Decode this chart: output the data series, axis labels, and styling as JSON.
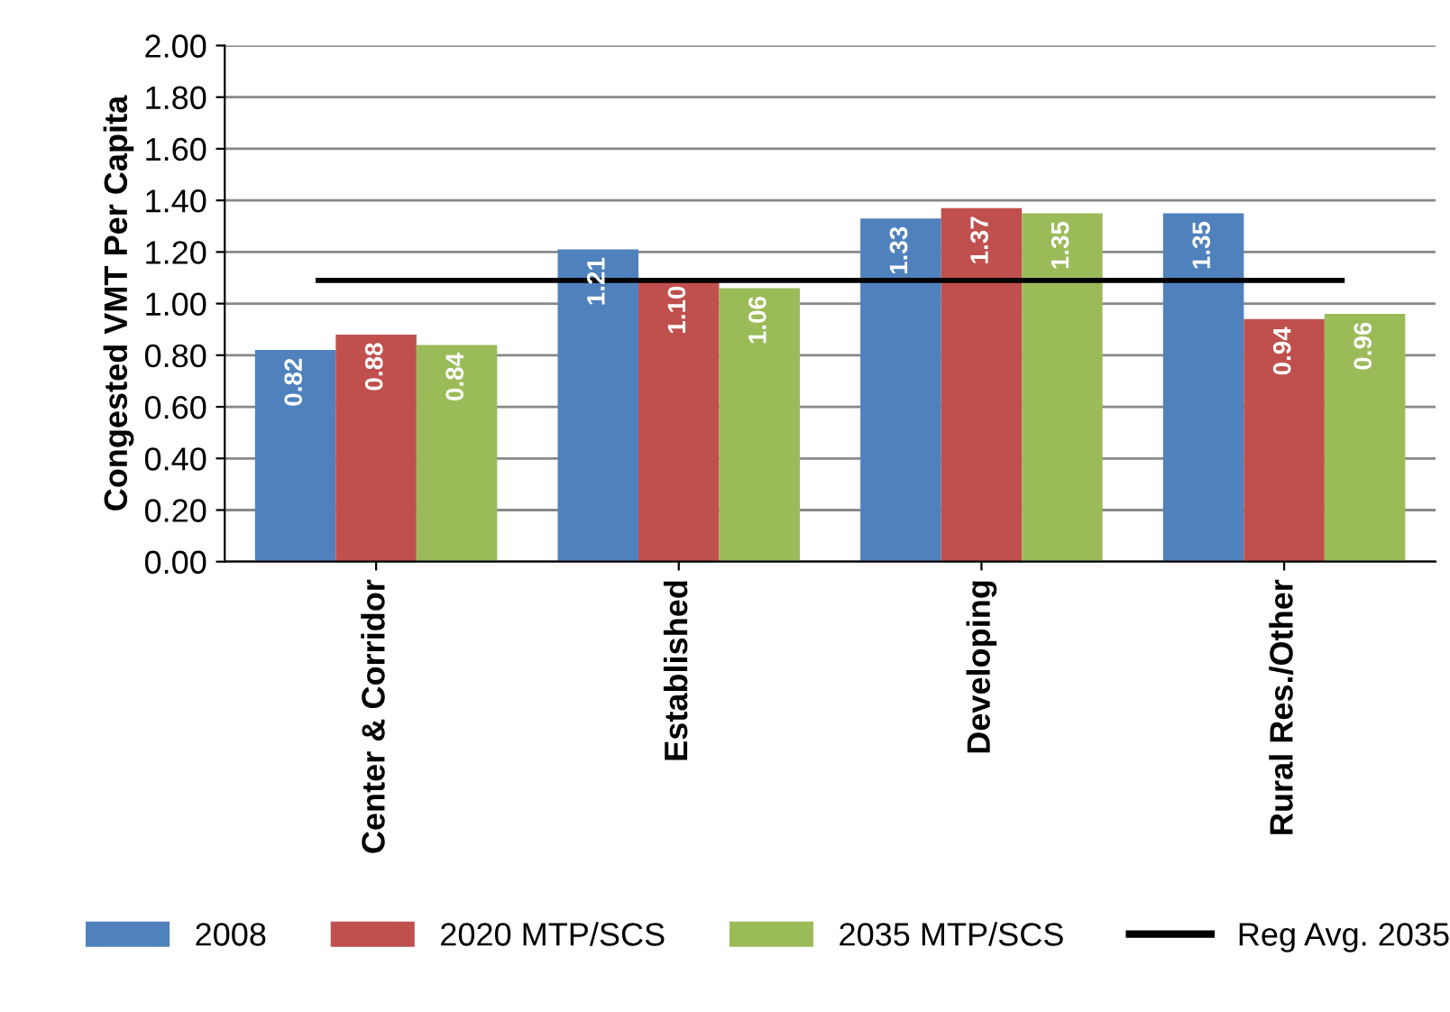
{
  "chart_data": {
    "type": "bar",
    "ylabel": "Congested VMT Per Capita",
    "categories": [
      "Center & Corridor",
      "Established",
      "Developing",
      "Rural Res./Other"
    ],
    "series": [
      {
        "name": "2008",
        "color": "#4f81bd",
        "values": [
          0.82,
          1.21,
          1.33,
          1.35
        ],
        "value_labels": [
          "0.82",
          "1.21",
          "1.33",
          "1.35"
        ]
      },
      {
        "name": "2020 MTP/SCS",
        "color": "#c0504d",
        "values": [
          0.88,
          1.1,
          1.37,
          0.94
        ],
        "value_labels": [
          "0.88",
          "1.10",
          "1.37",
          "0.94"
        ]
      },
      {
        "name": "2035 MTP/SCS",
        "color": "#9bbb59",
        "values": [
          0.84,
          1.06,
          1.35,
          0.96
        ],
        "value_labels": [
          "0.84",
          "1.06",
          "1.35",
          "0.96"
        ]
      }
    ],
    "ref_lines": [
      {
        "axis": "y",
        "value": 1.09,
        "label": "Reg Avg. 2035",
        "color": "#000000",
        "line_style": "solid"
      }
    ],
    "ylim": [
      0,
      2
    ],
    "yticks": [
      {
        "value": 0,
        "label": "0.00"
      },
      {
        "value": 0.2,
        "label": "0.20"
      },
      {
        "value": 0.4,
        "label": "0.40"
      },
      {
        "value": 0.6,
        "label": "0.60"
      },
      {
        "value": 0.8,
        "label": "0.80"
      },
      {
        "value": 1.0,
        "label": "1.00"
      },
      {
        "value": 1.2,
        "label": "1.20"
      },
      {
        "value": 1.4,
        "label": "1.40"
      },
      {
        "value": 1.6,
        "label": "1.60"
      },
      {
        "value": 1.8,
        "label": "1.80"
      },
      {
        "value": 2.0,
        "label": "2.00"
      }
    ],
    "grid": "y",
    "legend": "bottom"
  }
}
